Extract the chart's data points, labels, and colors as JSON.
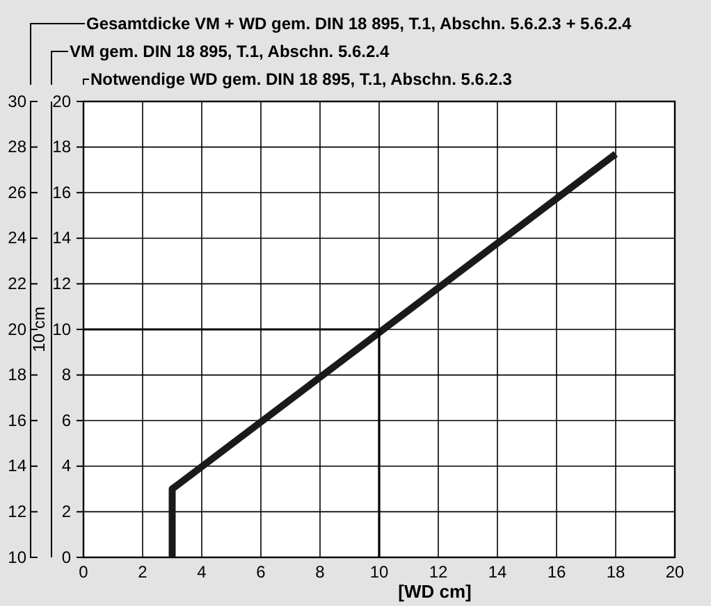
{
  "chart_data": {
    "type": "line",
    "xlabel": "[WD cm]",
    "title": "Gesamtdicke VM + WD gem. DIN 18 895, T.1, Abschn. 5.6.2.3 + 5.6.2.4",
    "y3label": "VM gem. DIN 18 895, T.1, Abschn. 5.6.2.4",
    "y2label": "Notwendige WD gem. DIN 18 895, T.1, Abschn. 5.6.2.3",
    "annotations": [
      "10 cm"
    ],
    "xlim": [
      0,
      20
    ],
    "xticks": [
      0,
      2,
      4,
      6,
      8,
      10,
      12,
      14,
      16,
      18,
      20
    ],
    "y2lim": [
      0,
      20
    ],
    "y2ticks": [
      0,
      2,
      4,
      6,
      8,
      10,
      12,
      14,
      16,
      18,
      20
    ],
    "ylim": [
      10,
      30
    ],
    "yticks": [
      10,
      12,
      14,
      16,
      18,
      20,
      22,
      24,
      26,
      28,
      30
    ],
    "grid": true,
    "series": [
      {
        "x": [
          3,
          3,
          18
        ],
        "values": [
          0,
          3,
          17.7
        ],
        "color": "#1a1a1a",
        "axis": "y2"
      },
      {
        "x": [
          0,
          10,
          10
        ],
        "values": [
          10,
          10,
          0
        ],
        "color": "#000000",
        "axis": "y2"
      }
    ]
  }
}
